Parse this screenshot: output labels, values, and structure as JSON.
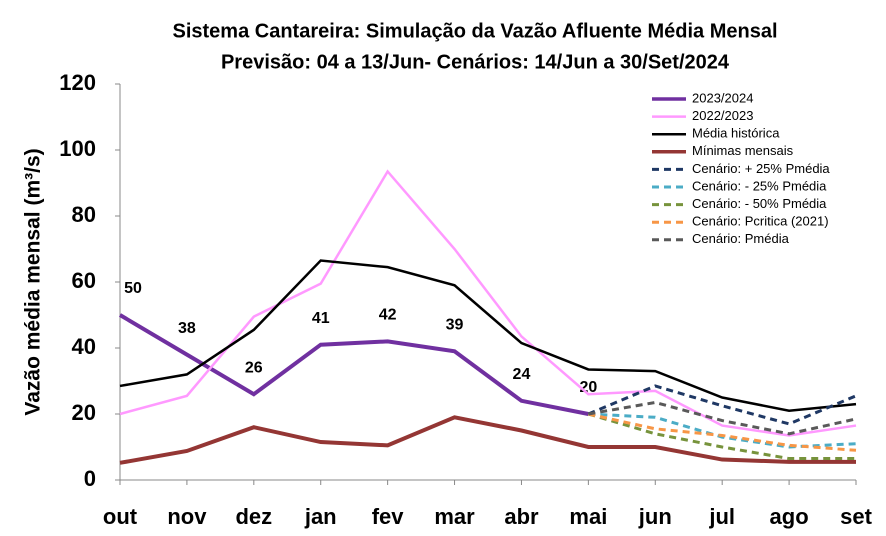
{
  "chart_data": {
    "type": "line",
    "title": "Sistema Cantareira: Simulação da Vazão Afluente Média Mensal",
    "subtitle": "Previsão: 04 a 13/Jun- Cenários: 14/Jun a 30/Set/2024",
    "y_label": "Vazão média mensal (m³/s)",
    "categories": [
      "out",
      "nov",
      "dez",
      "jan",
      "fev",
      "mar",
      "abr",
      "mai",
      "jun",
      "jul",
      "ago",
      "set"
    ],
    "ylim": [
      0,
      120
    ],
    "yticks": [
      0,
      20,
      40,
      60,
      80,
      100,
      120
    ],
    "grid": false,
    "legend": "upper right",
    "series": [
      {
        "name": "2023/2024",
        "color": "#7030a0",
        "style": "solid",
        "values": [
          50,
          38,
          26,
          41,
          42,
          39,
          24,
          20,
          null,
          null,
          null,
          null
        ],
        "data_labels": true
      },
      {
        "name": "2022/2023",
        "color": "#ff99ff",
        "style": "solid",
        "values": [
          20,
          25.5,
          49.5,
          59.5,
          93.5,
          70,
          43.5,
          26,
          27,
          16.5,
          13.5,
          16.5
        ]
      },
      {
        "name": "Média histórica",
        "color": "#000000",
        "style": "solid",
        "values": [
          28.5,
          32,
          45.5,
          66.5,
          64.5,
          59,
          41.5,
          33.5,
          33,
          25,
          21,
          23
        ]
      },
      {
        "name": "Mínimas mensais",
        "color": "#943634",
        "style": "solid",
        "values": [
          5.2,
          8.8,
          16,
          11.5,
          10.5,
          19,
          15,
          10,
          10,
          6.2,
          5.5,
          5.5
        ]
      },
      {
        "name": "Cenário: + 25% Pmédia",
        "color": "#1f3864",
        "style": "dashed",
        "values": [
          null,
          null,
          null,
          null,
          null,
          null,
          null,
          20,
          28.5,
          22.5,
          17,
          25.5
        ]
      },
      {
        "name": "Cenário: - 25% Pmédia",
        "color": "#4bacc6",
        "style": "dashed",
        "values": [
          null,
          null,
          null,
          null,
          null,
          null,
          null,
          20,
          19,
          13,
          10,
          11
        ]
      },
      {
        "name": "Cenário: - 50% Pmédia",
        "color": "#77933c",
        "style": "dashed",
        "values": [
          null,
          null,
          null,
          null,
          null,
          null,
          null,
          20,
          14,
          10,
          6.5,
          6.5
        ]
      },
      {
        "name": "Cenário: Pcritica (2021)",
        "color": "#f79646",
        "style": "dashed",
        "values": [
          null,
          null,
          null,
          null,
          null,
          null,
          null,
          20,
          15.5,
          13.5,
          10.5,
          9
        ]
      },
      {
        "name": "Cenário: Pmédia",
        "color": "#595959",
        "style": "dashed",
        "values": [
          null,
          null,
          null,
          null,
          null,
          null,
          null,
          20,
          23.5,
          18,
          14,
          18.5
        ]
      }
    ]
  }
}
